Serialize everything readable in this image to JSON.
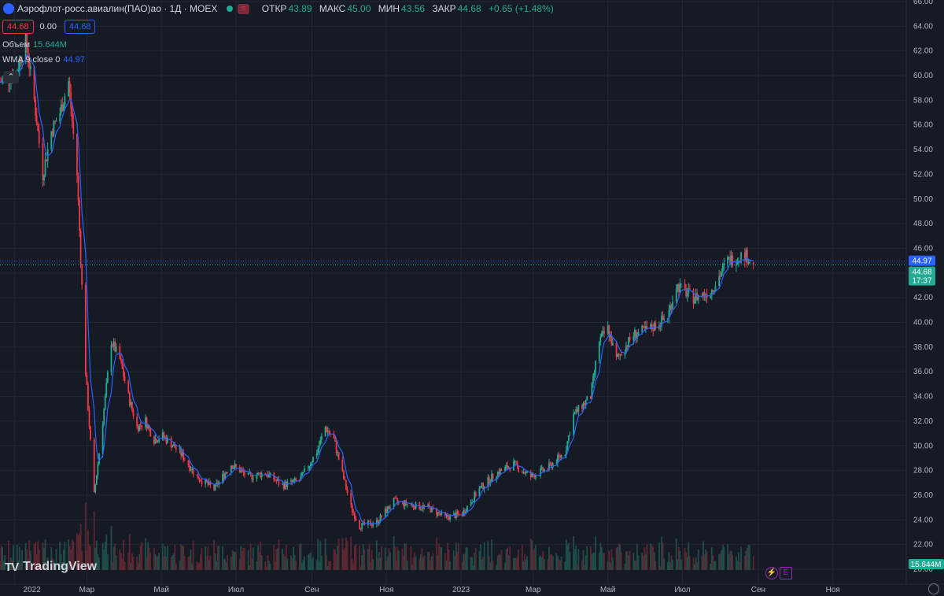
{
  "header": {
    "title": "Аэрофлот-росс.авиалин(ПАО)ао · 1Д · MOEX",
    "eq_label": "=",
    "open_label": "ОТКР",
    "open": "43.89",
    "high_label": "МАКС",
    "high": "45.00",
    "low_label": "МИН",
    "low": "43.56",
    "close_label": "ЗАКР",
    "close": "44.68",
    "change": "+0.65 (+1.48%)"
  },
  "price_boxes": {
    "sell": "44.68",
    "spread": "0.00",
    "buy": "44.68"
  },
  "indicators": {
    "volume_label": "Объем",
    "volume_value": "15.644M",
    "wma_label": "WMA 9 close 0",
    "wma_value": "44.97"
  },
  "badges": {
    "wma": "44.97",
    "price": "44.68",
    "countdown": "17:37",
    "volume": "15.644M"
  },
  "logo_text": "TradingView",
  "event_icons": [
    "⚡",
    "E"
  ],
  "colors": {
    "background": "#161a25",
    "grid": "#242733",
    "up": "#22ab94",
    "down": "#f23645",
    "wma": "#2962ff",
    "volume_up": "#1e4d48",
    "volume_down": "#5c2631"
  },
  "chart_data": {
    "type": "candlestick",
    "symbol": "Аэрофлот-росс.авиалин(ПАО)ао",
    "interval": "1Д",
    "exchange": "MOEX",
    "y_ticks": [
      "20.00",
      "22.00",
      "24.00",
      "26.00",
      "28.00",
      "30.00",
      "32.00",
      "34.00",
      "36.00",
      "38.00",
      "40.00",
      "42.00",
      "44.00",
      "46.00",
      "48.00",
      "50.00",
      "52.00",
      "54.00",
      "56.00",
      "58.00",
      "60.00",
      "62.00",
      "64.00",
      "66.00"
    ],
    "ylim": [
      20,
      66
    ],
    "x_ticks": [
      "2022",
      "Мар",
      "Май",
      "Июл",
      "Сен",
      "Ноя",
      "2023",
      "Мар",
      "Май",
      "Июл",
      "Сен",
      "Ноя"
    ],
    "x_tick_dates": [
      "2022-01-01",
      "2022-03-01",
      "2022-05-01",
      "2022-07-01",
      "2022-09-01",
      "2022-11-01",
      "2023-01-01",
      "2023-03-01",
      "2023-05-01",
      "2023-07-01",
      "2023-09-01",
      "2023-11-01"
    ],
    "xlim": [
      "2021-12-20",
      "2023-12-31"
    ],
    "close_series": [
      {
        "date": "2021-12-20",
        "close": 59.5
      },
      {
        "date": "2021-12-27",
        "close": 59.8
      },
      {
        "date": "2022-01-03",
        "close": 60.5
      },
      {
        "date": "2022-01-10",
        "close": 63.0
      },
      {
        "date": "2022-01-17",
        "close": 58.0
      },
      {
        "date": "2022-01-24",
        "close": 52.0
      },
      {
        "date": "2022-01-31",
        "close": 55.5
      },
      {
        "date": "2022-02-07",
        "close": 57.0
      },
      {
        "date": "2022-02-14",
        "close": 59.5
      },
      {
        "date": "2022-02-21",
        "close": 52.0
      },
      {
        "date": "2022-02-28",
        "close": 36.0
      },
      {
        "date": "2022-03-07",
        "close": 26.0
      },
      {
        "date": "2022-03-14",
        "close": 32.0
      },
      {
        "date": "2022-03-21",
        "close": 38.5
      },
      {
        "date": "2022-03-28",
        "close": 37.0
      },
      {
        "date": "2022-04-04",
        "close": 34.0
      },
      {
        "date": "2022-04-11",
        "close": 31.5
      },
      {
        "date": "2022-04-18",
        "close": 32.0
      },
      {
        "date": "2022-04-25",
        "close": 30.5
      },
      {
        "date": "2022-05-02",
        "close": 30.8
      },
      {
        "date": "2022-05-16",
        "close": 29.5
      },
      {
        "date": "2022-05-30",
        "close": 27.5
      },
      {
        "date": "2022-06-13",
        "close": 26.5
      },
      {
        "date": "2022-06-27",
        "close": 28.5
      },
      {
        "date": "2022-07-11",
        "close": 27.5
      },
      {
        "date": "2022-07-25",
        "close": 27.8
      },
      {
        "date": "2022-08-08",
        "close": 26.8
      },
      {
        "date": "2022-08-22",
        "close": 27.2
      },
      {
        "date": "2022-09-05",
        "close": 29.5
      },
      {
        "date": "2022-09-12",
        "close": 31.5
      },
      {
        "date": "2022-09-19",
        "close": 30.5
      },
      {
        "date": "2022-10-03",
        "close": 25.0
      },
      {
        "date": "2022-10-10",
        "close": 23.5
      },
      {
        "date": "2022-10-24",
        "close": 23.8
      },
      {
        "date": "2022-11-07",
        "close": 25.5
      },
      {
        "date": "2022-11-21",
        "close": 25.2
      },
      {
        "date": "2022-12-05",
        "close": 25.0
      },
      {
        "date": "2022-12-19",
        "close": 24.2
      },
      {
        "date": "2023-01-02",
        "close": 24.5
      },
      {
        "date": "2023-01-16",
        "close": 26.5
      },
      {
        "date": "2023-01-30",
        "close": 27.8
      },
      {
        "date": "2023-02-13",
        "close": 28.5
      },
      {
        "date": "2023-02-27",
        "close": 27.5
      },
      {
        "date": "2023-03-13",
        "close": 28.2
      },
      {
        "date": "2023-03-27",
        "close": 29.5
      },
      {
        "date": "2023-04-03",
        "close": 32.5
      },
      {
        "date": "2023-04-17",
        "close": 34.0
      },
      {
        "date": "2023-04-24",
        "close": 38.5
      },
      {
        "date": "2023-05-01",
        "close": 39.5
      },
      {
        "date": "2023-05-08",
        "close": 37.0
      },
      {
        "date": "2023-05-22",
        "close": 39.0
      },
      {
        "date": "2023-06-05",
        "close": 39.5
      },
      {
        "date": "2023-06-19",
        "close": 40.5
      },
      {
        "date": "2023-06-26",
        "close": 43.0
      },
      {
        "date": "2023-07-10",
        "close": 42.0
      },
      {
        "date": "2023-07-24",
        "close": 42.5
      },
      {
        "date": "2023-08-07",
        "close": 45.0
      },
      {
        "date": "2023-08-21",
        "close": 45.5
      },
      {
        "date": "2023-08-28",
        "close": 44.68
      }
    ],
    "last_close": 44.68,
    "wma": 44.97,
    "volume_last": "15.644M"
  }
}
